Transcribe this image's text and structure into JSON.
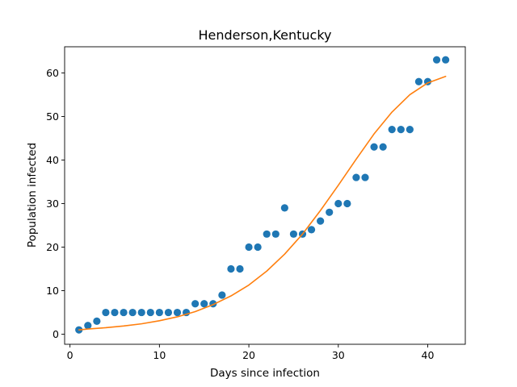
{
  "chart_data": {
    "type": "scatter",
    "title": "Henderson,Kentucky",
    "xlabel": "Days since infection",
    "ylabel": "Population infected",
    "xlim": [
      -0.6,
      44.2
    ],
    "ylim": [
      -2.3,
      66.0
    ],
    "xticks": [
      0,
      10,
      20,
      30,
      40
    ],
    "yticks": [
      0,
      10,
      20,
      30,
      40,
      50,
      60
    ],
    "grid": false,
    "series": [
      {
        "kind": "scatter",
        "color": "#1f77b4",
        "x": [
          1,
          2,
          3,
          4,
          5,
          6,
          7,
          8,
          9,
          10,
          11,
          12,
          13,
          14,
          15,
          16,
          17,
          18,
          19,
          20,
          21,
          22,
          23,
          24,
          25,
          26,
          27,
          28,
          29,
          30,
          31,
          32,
          33,
          34,
          35,
          36,
          37,
          38,
          39,
          40,
          41,
          42
        ],
        "y": [
          1,
          2,
          3,
          5,
          5,
          5,
          5,
          5,
          5,
          5,
          5,
          5,
          5,
          7,
          7,
          7,
          9,
          15,
          15,
          20,
          20,
          23,
          23,
          29,
          23,
          23,
          24,
          26,
          28,
          30,
          30,
          36,
          36,
          43,
          43,
          47,
          47,
          47,
          58,
          58,
          63,
          63
        ]
      },
      {
        "kind": "line",
        "color": "#ff7f0e",
        "x": [
          1,
          2,
          4,
          6,
          8,
          10,
          12,
          14,
          16,
          18,
          20,
          22,
          24,
          26,
          28,
          30,
          32,
          34,
          36,
          38,
          40,
          42
        ],
        "y": [
          1.0,
          1.2,
          1.5,
          1.9,
          2.4,
          3.1,
          4.0,
          5.2,
          6.8,
          8.8,
          11.3,
          14.5,
          18.4,
          23.0,
          28.4,
          34.2,
          40.2,
          46.0,
          51.0,
          55.0,
          57.7,
          59.2
        ]
      }
    ]
  }
}
